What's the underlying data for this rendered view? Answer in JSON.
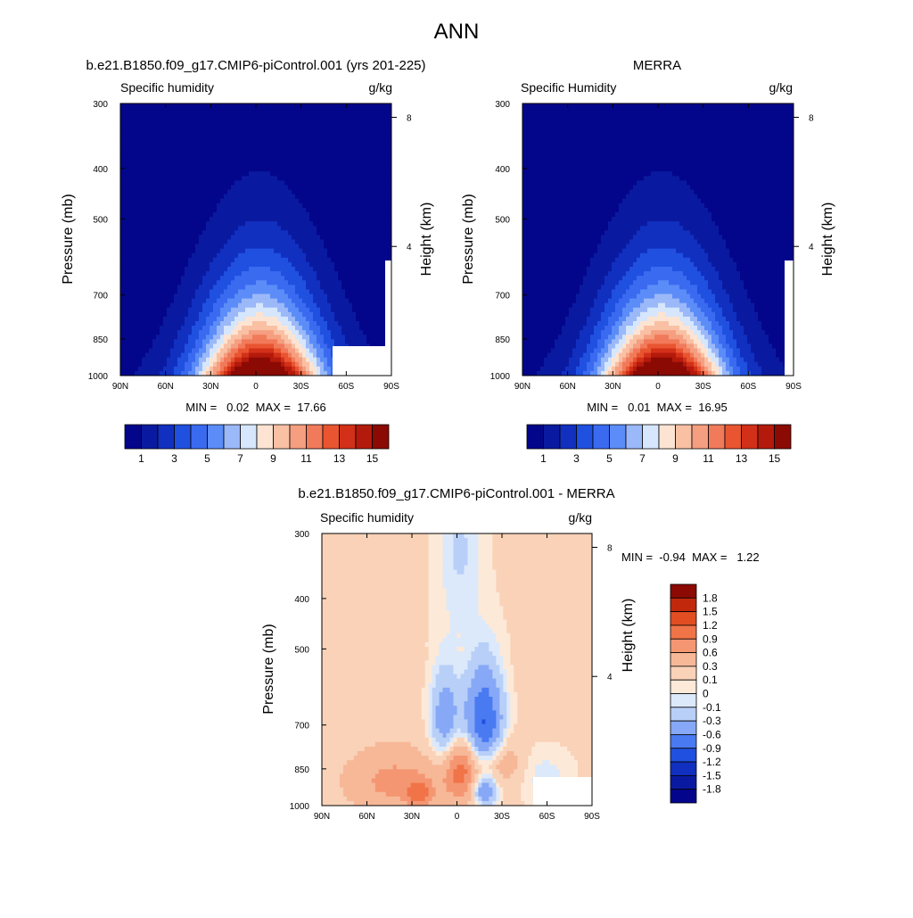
{
  "title": "ANN",
  "colors": {
    "seq": [
      "#03068b",
      "#0a1aa0",
      "#1130c0",
      "#2050e0",
      "#3a6af0",
      "#5b8cf8",
      "#9bb8f8",
      "#d6e6fc",
      "#fde4d2",
      "#f9c0a4",
      "#f59e80",
      "#f17a5a",
      "#e85530",
      "#d23018",
      "#b41a0c",
      "#8c0a04"
    ],
    "div": [
      "#03068b",
      "#0a1aa0",
      "#1130c0",
      "#2050e0",
      "#4a7af2",
      "#86a8f6",
      "#b8cff8",
      "#dce9fb",
      "#f5f5f5",
      "#fde9d8",
      "#f9d2b8",
      "#f7b898",
      "#f59672",
      "#f07448",
      "#e04e22",
      "#c2280c",
      "#8c0a04"
    ]
  },
  "chart_data": [
    {
      "type": "heatmap",
      "title": "b.e21.B1850.f09_g17.CMIP6-piControl.001 (yrs 201-225)",
      "left_label": "Specific humidity",
      "right_label": "g/kg",
      "ylabel": "Pressure (mb)",
      "y2label": "Height (km)",
      "x_ticks": [
        "90N",
        "60N",
        "30N",
        "0",
        "30S",
        "60S",
        "90S"
      ],
      "y_ticks": [
        "300",
        "400",
        "500",
        "700",
        "850",
        "1000"
      ],
      "y2_ticks": [
        "8",
        "4"
      ],
      "y_scale": "log",
      "stats": "MIN =   0.02  MAX =  17.66",
      "min": 0.02,
      "max": 17.66,
      "peak_lat": -3,
      "colorbar_labels": [
        "1",
        "3",
        "5",
        "7",
        "9",
        "11",
        "13",
        "15"
      ],
      "levels": [
        1,
        2,
        3,
        4,
        5,
        6,
        7,
        8,
        9,
        10,
        11,
        12,
        13,
        14,
        15
      ]
    },
    {
      "type": "heatmap",
      "title": "MERRA",
      "left_label": "Specific Humidity",
      "right_label": "g/kg",
      "ylabel": "Pressure (mb)",
      "y2label": "Height (km)",
      "x_ticks": [
        "90N",
        "60N",
        "30N",
        "0",
        "30S",
        "60S",
        "90S"
      ],
      "y_ticks": [
        "300",
        "400",
        "500",
        "700",
        "850",
        "1000"
      ],
      "y2_ticks": [
        "8",
        "4"
      ],
      "y_scale": "log",
      "stats": "MIN =   0.01  MAX =  16.95",
      "min": 0.01,
      "max": 16.95,
      "peak_lat": -3,
      "colorbar_labels": [
        "1",
        "3",
        "5",
        "7",
        "9",
        "11",
        "13",
        "15"
      ],
      "levels": [
        1,
        2,
        3,
        4,
        5,
        6,
        7,
        8,
        9,
        10,
        11,
        12,
        13,
        14,
        15
      ]
    },
    {
      "type": "heatmap",
      "title": "b.e21.B1850.f09_g17.CMIP6-piControl.001 - MERRA",
      "left_label": "Specific humidity",
      "right_label": "g/kg",
      "ylabel": "Pressure (mb)",
      "y2label": "Height (km)",
      "x_ticks": [
        "90N",
        "60N",
        "30N",
        "0",
        "30S",
        "60S",
        "90S"
      ],
      "y_ticks": [
        "300",
        "400",
        "500",
        "700",
        "850",
        "1000"
      ],
      "y2_ticks": [
        "8",
        "4"
      ],
      "y_scale": "log",
      "stats": "MIN =  -0.94  MAX =   1.22",
      "min": -0.94,
      "max": 1.22,
      "colorbar_labels": [
        "1.8",
        "1.5",
        "1.2",
        "0.9",
        "0.6",
        "0.3",
        "0.1",
        "0",
        "-0.1",
        "-0.3",
        "-0.6",
        "-0.9",
        "-1.2",
        "-1.5",
        "-1.8"
      ],
      "levels": [
        -1.8,
        -1.5,
        -1.2,
        -0.9,
        -0.6,
        -0.3,
        -0.1,
        0,
        0.1,
        0.3,
        0.6,
        0.9,
        1.2,
        1.5,
        1.8
      ]
    }
  ]
}
